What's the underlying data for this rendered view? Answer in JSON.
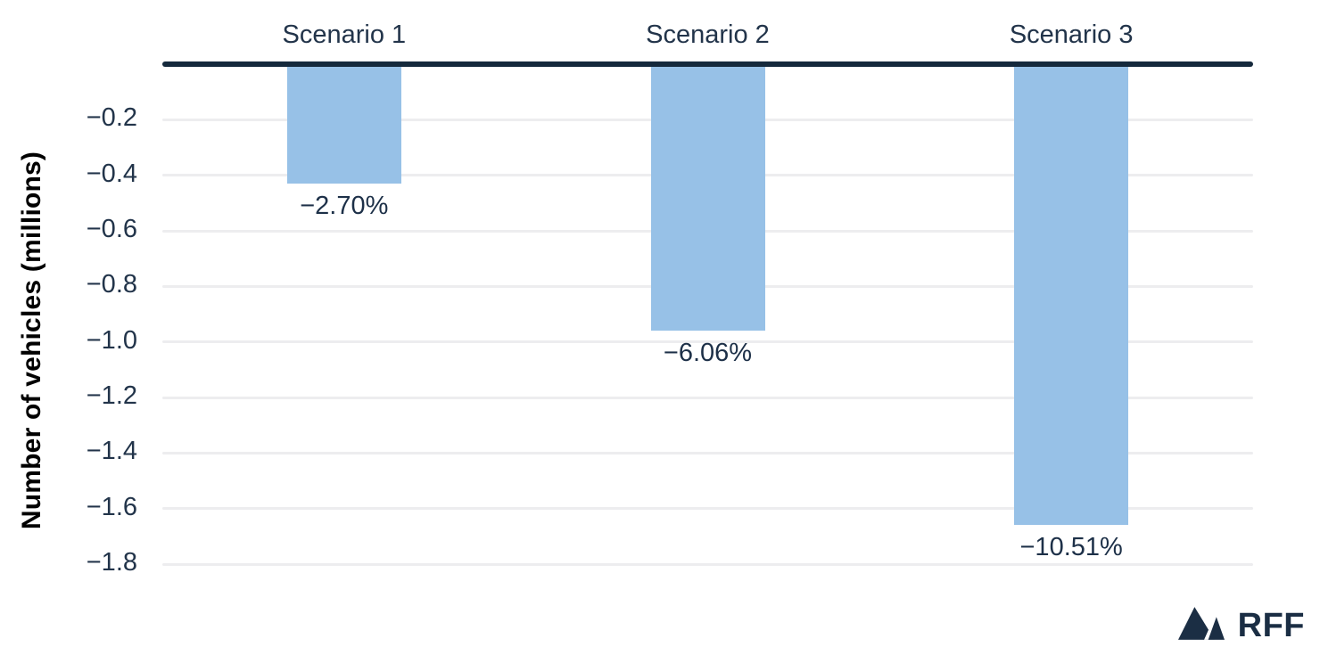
{
  "chart_data": {
    "type": "bar",
    "categories": [
      "Scenario 1",
      "Scenario 2",
      "Scenario 3"
    ],
    "values": [
      -0.43,
      -0.96,
      -1.66
    ],
    "bar_labels": [
      "−2.70%",
      "−6.06%",
      "−10.51%"
    ],
    "title": "",
    "xlabel": "",
    "ylabel": "Number of vehicles (millions)",
    "ylim": [
      -1.88,
      0
    ],
    "yticks": [
      -0.2,
      -0.4,
      -0.6,
      -0.8,
      -1.0,
      -1.2,
      -1.4,
      -1.6,
      -1.8
    ],
    "ytick_labels": [
      "−0.2",
      "−0.4",
      "−0.6",
      "−0.8",
      "−1.0",
      "−1.2",
      "−1.4",
      "−1.6",
      "−1.8"
    ],
    "grid": true,
    "legend": "none",
    "orientation": "vertical-negative",
    "colors": {
      "bar": "#97c1e7",
      "zero_line": "#15293c",
      "gridline": "#ededef",
      "tick_text": "#22344a",
      "category_text": "#22344a",
      "value_text": "#1d3048",
      "ylabel_text": "#000000"
    }
  },
  "footer": {
    "logo_text": "RFF",
    "logo_icon": "rff-mountain-icon",
    "logo_color": "#1b2e44"
  }
}
